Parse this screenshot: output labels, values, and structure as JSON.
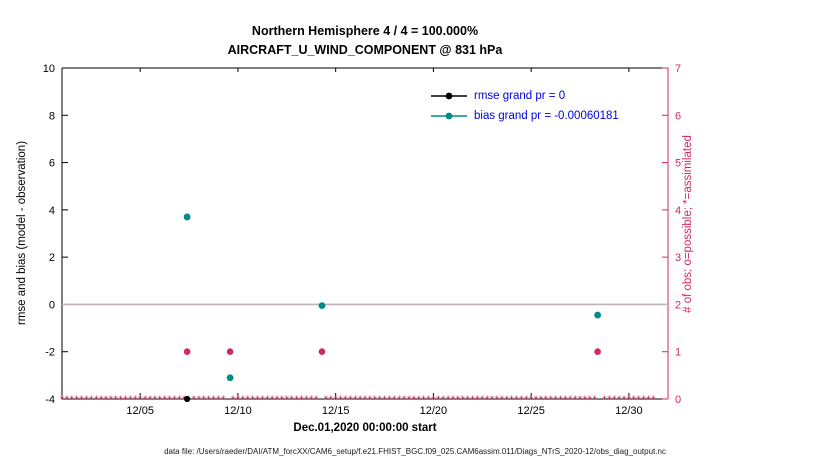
{
  "figure": {
    "title_line1": "Northern Hemisphere 4 / 4 = 100.000%",
    "title_line2": "AIRCRAFT_U_WIND_COMPONENT @ 831 hPa",
    "caption": "data file: /Users/raeder/DAI/ATM_forcXX/CAM6_setup/f.e21.FHIST_BGC.f09_025.CAM6assim.011/Diags_NTrS_2020-12/obs_diag_output.nc"
  },
  "chart_data": {
    "type": "line",
    "title": "Northern Hemisphere 4 / 4 = 100.000%",
    "subtitle": "AIRCRAFT_U_WIND_COMPONENT @ 831 hPa",
    "xlabel": "Dec.01,2020 00:00:00 start",
    "ylabel_left": "rmse and bias (model - observation)",
    "ylabel_right": "# of obs: o=possible; *=assimilated",
    "x_range_days": [
      1,
      32
    ],
    "x_ticks": [
      {
        "day": 5,
        "label": "12/05"
      },
      {
        "day": 10,
        "label": "12/10"
      },
      {
        "day": 15,
        "label": "12/15"
      },
      {
        "day": 20,
        "label": "12/20"
      },
      {
        "day": 25,
        "label": "12/25"
      },
      {
        "day": 30,
        "label": "12/30"
      }
    ],
    "ylim_left": [
      -4,
      10
    ],
    "yticks_left": [
      -4,
      -2,
      0,
      2,
      4,
      6,
      8,
      10
    ],
    "ylim_right": [
      0,
      7
    ],
    "yticks_right": [
      0,
      1,
      2,
      3,
      4,
      5,
      6,
      7
    ],
    "zero_line_value": 0,
    "legend": [
      {
        "label": "rmse grand pr = 0",
        "series": "rmse"
      },
      {
        "label": "bias grand pr = -0.00060181",
        "series": "bias"
      }
    ],
    "series": [
      {
        "name": "rmse",
        "color_key": "rmse",
        "points": [
          {
            "day": 7.4,
            "value": -4.0
          }
        ]
      },
      {
        "name": "bias",
        "color_key": "bias",
        "points": [
          {
            "day": 7.4,
            "value": 3.7
          },
          {
            "day": 9.6,
            "value": -3.1
          },
          {
            "day": 14.3,
            "value": -0.05
          },
          {
            "day": 28.4,
            "value": -0.45
          }
        ]
      }
    ],
    "obs_counts": {
      "axis": "right",
      "count1_days": [
        7.4,
        9.6,
        14.3,
        28.4
      ],
      "count1_value": 1,
      "zero_row": {
        "start_day": 1.0,
        "end_day": 31.25,
        "step": 0.25,
        "value": 0
      }
    },
    "colors": {
      "rmse": "#000000",
      "bias": "#008b8b",
      "obs": "#d22860",
      "axis": "#000000",
      "zero_line": "#bdb3b3",
      "legend_text": "#0000e0"
    }
  }
}
